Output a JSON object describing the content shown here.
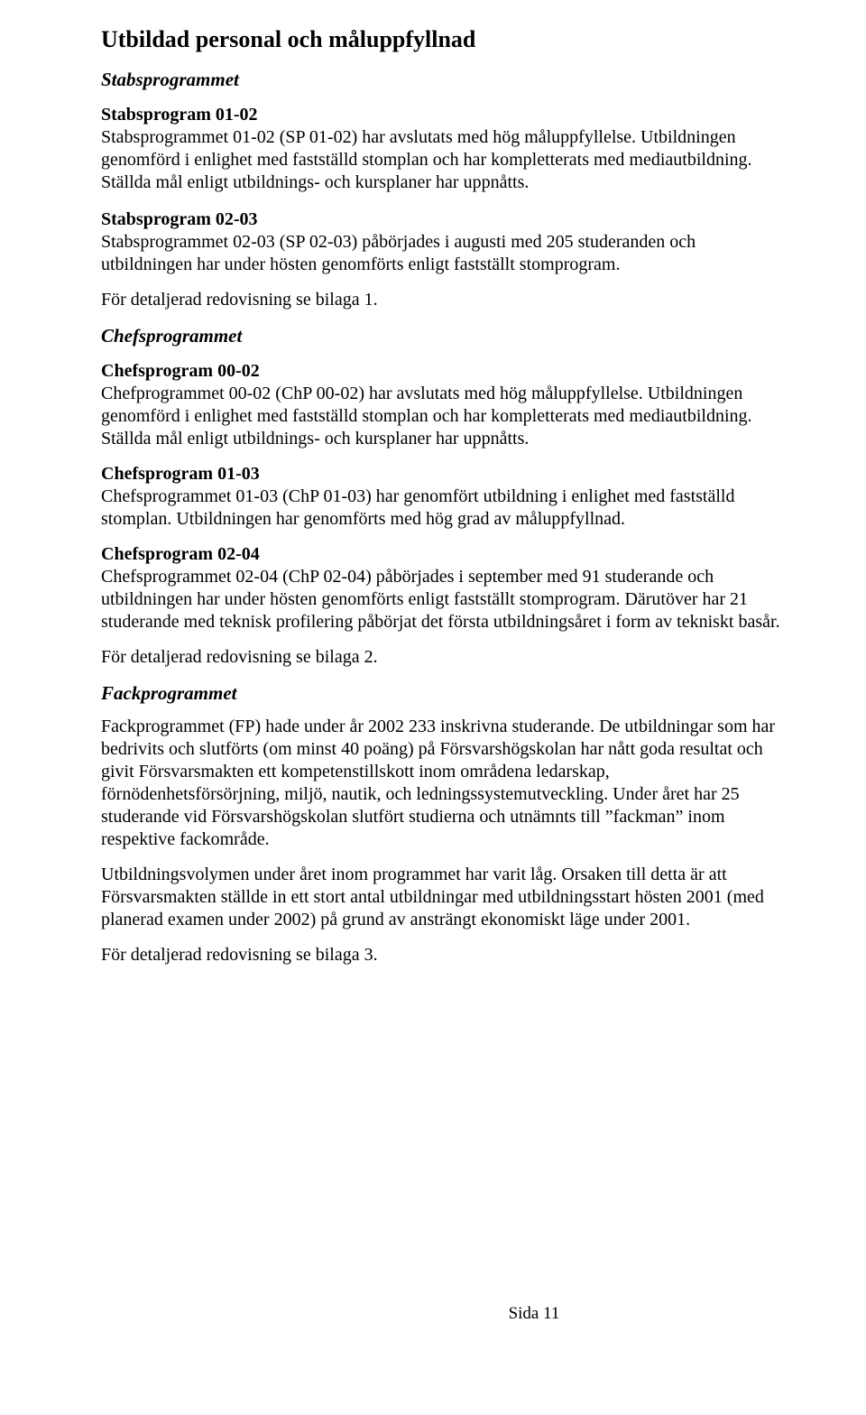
{
  "page": {
    "title": "Utbildad personal och måluppfyllnad",
    "footer": "Sida 11"
  },
  "stabs": {
    "sectionTitle": "Stabsprogrammet",
    "p0102_heading": "Stabsprogram 01-02",
    "p0102_body": "Stabsprogrammet 01-02 (SP 01-02) har avslutats med hög måluppfyllelse. Utbildningen genomförd i enlighet med fastställd stomplan och har kompletterats med mediautbildning. Ställda mål enligt utbildnings- och kursplaner har uppnåtts.",
    "p0203_heading": "Stabsprogram 02-03",
    "p0203_body": "Stabsprogrammet 02-03 (SP 02-03)  påbörjades i augusti med 205 studeranden och utbildningen har under hösten genomförts enligt fastställt stomprogram.",
    "detail_ref": "För detaljerad redovisning se bilaga 1."
  },
  "chefs": {
    "sectionTitle": "Chefsprogrammet",
    "p0002_heading": "Chefsprogram  00-02",
    "p0002_body": "Chefprogrammet 00-02 (ChP 00-02) har avslutats med hög måluppfyllelse. Utbildningen genomförd i enlighet med fastställd stomplan och har kompletterats med mediautbildning. Ställda mål enligt utbildnings- och kursplaner har uppnåtts.",
    "p0103_heading": "Chefsprogram 01-03",
    "p0103_body": "Chefsprogrammet 01-03 (ChP 01-03) har genomfört utbildning i enlighet med fastställd stomplan. Utbildningen har genomförts med hög grad av måluppfyllnad.",
    "p0204_heading": "Chefsprogram 02-04",
    "p0204_body": "Chefsprogrammet 02-04 (ChP 02-04) påbörjades i september med 91 studerande och utbildningen har under hösten genomförts enligt fastställt stomprogram. Därutöver har 21 studerande med teknisk profilering påbörjat det första utbildningsåret i form av tekniskt basår.",
    "detail_ref": "För detaljerad redovisning se bilaga 2."
  },
  "fack": {
    "sectionTitle": "Fackprogrammet",
    "intro": "Fackprogrammet (FP) hade under år 2002 233 inskrivna studerande. De utbildningar som har bedrivits och slutförts (om minst 40 poäng) på Försvarshögskolan har nått goda resultat och givit Försvarsmakten ett kompetenstillskott inom områdena ledarskap, förnödenhetsförsörjning, miljö, nautik, och ledningssystemutveckling. Under året har 25 studerande vid Försvarshögskolan slutfört studierna och utnämnts till ”fackman” inom respektive fackområde.",
    "volume": "Utbildningsvolymen under året inom programmet har varit låg. Orsaken till detta är att Försvarsmakten ställde in ett stort antal utbildningar med utbildningsstart hösten 2001 (med planerad examen under 2002) på grund av ansträngt ekonomiskt läge under 2001.",
    "detail_ref": "För detaljerad redovisning se bilaga 3."
  }
}
